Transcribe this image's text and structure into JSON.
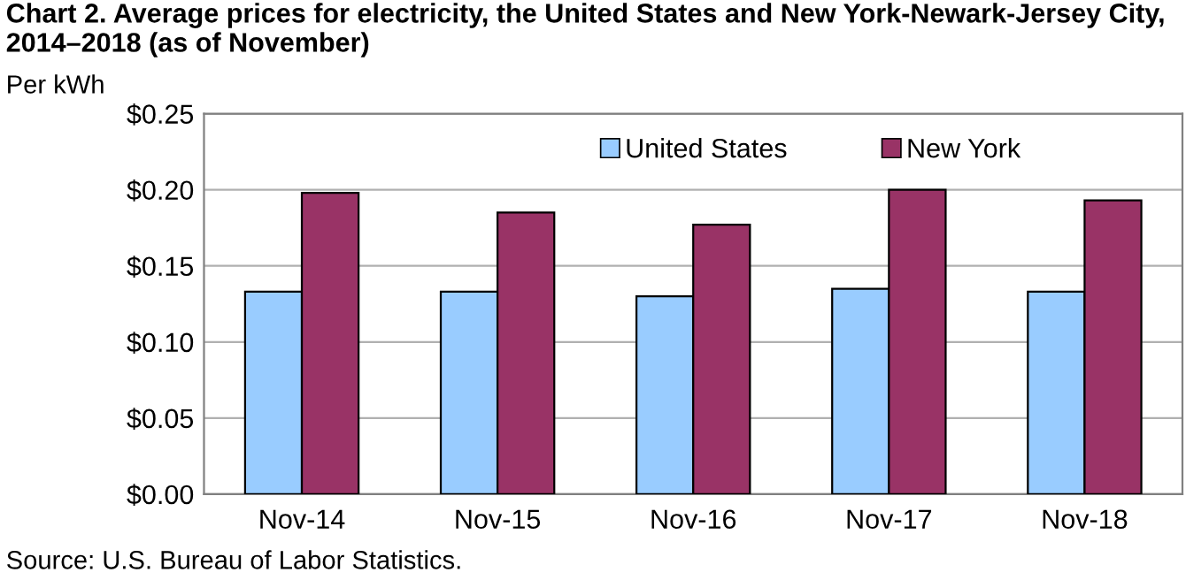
{
  "chart_data": {
    "type": "bar",
    "title": "Chart 2. Average prices for electricity, the United States and New York-Newark-Jersey City, 2014–2018 (as of November)",
    "ylabel": "Per kWh",
    "categories": [
      "Nov-14",
      "Nov-15",
      "Nov-16",
      "Nov-17",
      "Nov-18"
    ],
    "series": [
      {
        "name": "United States",
        "color": "#99ccff",
        "values": [
          0.133,
          0.133,
          0.13,
          0.135,
          0.133
        ]
      },
      {
        "name": "New York",
        "color": "#993366",
        "values": [
          0.198,
          0.185,
          0.177,
          0.2,
          0.193
        ]
      }
    ],
    "ylim": [
      0,
      0.25
    ],
    "yticks": [
      {
        "value": 0,
        "label": "$0.00"
      },
      {
        "value": 0.05,
        "label": "$0.05"
      },
      {
        "value": 0.1,
        "label": "$0.10"
      },
      {
        "value": 0.15,
        "label": "$0.15"
      },
      {
        "value": 0.2,
        "label": "$0.20"
      },
      {
        "value": 0.25,
        "label": "$0.25"
      }
    ],
    "grid": "y",
    "legend": "top",
    "annotations": [
      "Source: U.S. Bureau of Labor Statistics."
    ]
  }
}
